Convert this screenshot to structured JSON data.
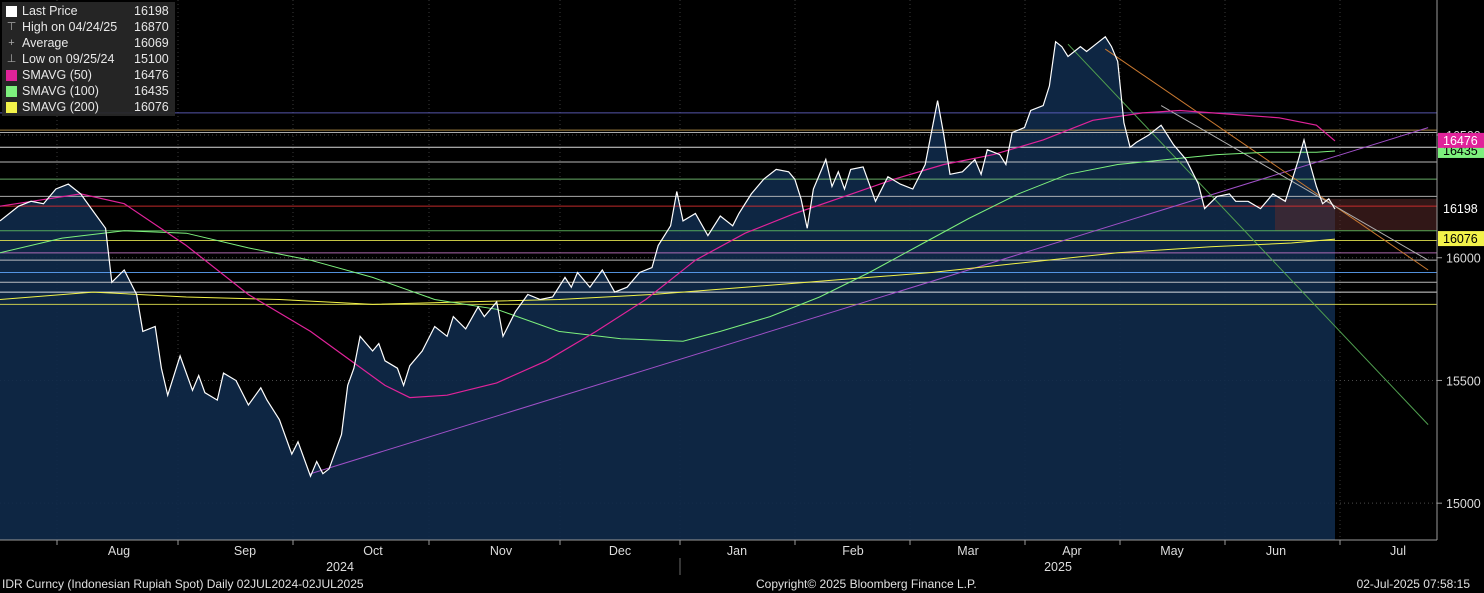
{
  "legend": [
    {
      "label": "Last Price",
      "value": "16198",
      "color": "#ffffff",
      "glyph": ""
    },
    {
      "label": "High on 04/24/25",
      "value": "16870",
      "color": "",
      "glyph": "⊤"
    },
    {
      "label": "Average",
      "value": "16069",
      "color": "",
      "glyph": "+"
    },
    {
      "label": "Low on 09/25/24",
      "value": "15100",
      "color": "",
      "glyph": "⊥"
    },
    {
      "label": "SMAVG (50)",
      "value": "16476",
      "color": "#e0239a",
      "glyph": ""
    },
    {
      "label": "SMAVG (100)",
      "value": "16435",
      "color": "#7df07d",
      "glyph": ""
    },
    {
      "label": "SMAVG (200)",
      "value": "16076",
      "color": "#f2f24a",
      "glyph": ""
    }
  ],
  "footer": {
    "left": "IDR Curncy (Indonesian Rupiah Spot)  Daily 02JUL2024-02JUL2025",
    "center": "Copyright© 2025 Bloomberg Finance L.P.",
    "right": "02-Jul-2025 07:58:15"
  },
  "chart_data": {
    "type": "line",
    "ylim": [
      14850,
      17050
    ],
    "yticks": [
      15000,
      15500,
      16000,
      16500
    ],
    "months": [
      "Aug",
      "Sep",
      "Oct",
      "Nov",
      "Dec",
      "Jan",
      "Feb",
      "Mar",
      "Apr",
      "May",
      "Jun",
      "Jul"
    ],
    "years": [
      "2024",
      "2025"
    ],
    "price_label": "16198",
    "sma50_label": "16476",
    "sma100_label": "16435",
    "sma200_label": "16076",
    "last_price": [
      [
        0,
        16150
      ],
      [
        3,
        16210
      ],
      [
        5,
        16230
      ],
      [
        7,
        16220
      ],
      [
        9,
        16280
      ],
      [
        11,
        16300
      ],
      [
        13,
        16260
      ],
      [
        15,
        16190
      ],
      [
        17,
        16120
      ],
      [
        18,
        15900
      ],
      [
        20,
        15950
      ],
      [
        22,
        15850
      ],
      [
        23,
        15700
      ],
      [
        25,
        15720
      ],
      [
        26,
        15550
      ],
      [
        27,
        15440
      ],
      [
        29,
        15600
      ],
      [
        31,
        15460
      ],
      [
        32,
        15520
      ],
      [
        33,
        15450
      ],
      [
        35,
        15420
      ],
      [
        36,
        15530
      ],
      [
        38,
        15500
      ],
      [
        40,
        15400
      ],
      [
        42,
        15470
      ],
      [
        43,
        15420
      ],
      [
        45,
        15340
      ],
      [
        47,
        15200
      ],
      [
        48,
        15250
      ],
      [
        50,
        15110
      ],
      [
        51,
        15170
      ],
      [
        52,
        15120
      ],
      [
        53,
        15140
      ],
      [
        55,
        15280
      ],
      [
        56,
        15480
      ],
      [
        57,
        15550
      ],
      [
        58,
        15680
      ],
      [
        60,
        15620
      ],
      [
        61,
        15650
      ],
      [
        62,
        15580
      ],
      [
        64,
        15550
      ],
      [
        65,
        15480
      ],
      [
        66,
        15560
      ],
      [
        68,
        15620
      ],
      [
        70,
        15720
      ],
      [
        72,
        15680
      ],
      [
        73,
        15760
      ],
      [
        75,
        15710
      ],
      [
        77,
        15800
      ],
      [
        78,
        15760
      ],
      [
        80,
        15820
      ],
      [
        81,
        15680
      ],
      [
        83,
        15780
      ],
      [
        85,
        15850
      ],
      [
        87,
        15830
      ],
      [
        89,
        15840
      ],
      [
        91,
        15920
      ],
      [
        92,
        15880
      ],
      [
        93,
        15940
      ],
      [
        95,
        15880
      ],
      [
        97,
        15950
      ],
      [
        99,
        15860
      ],
      [
        101,
        15880
      ],
      [
        103,
        15940
      ],
      [
        105,
        15960
      ],
      [
        106,
        16050
      ],
      [
        108,
        16130
      ],
      [
        109,
        16270
      ],
      [
        110,
        16150
      ],
      [
        112,
        16180
      ],
      [
        114,
        16090
      ],
      [
        116,
        16170
      ],
      [
        118,
        16130
      ],
      [
        119,
        16180
      ],
      [
        121,
        16260
      ],
      [
        123,
        16320
      ],
      [
        125,
        16360
      ],
      [
        127,
        16350
      ],
      [
        128,
        16320
      ],
      [
        129,
        16240
      ],
      [
        130,
        16120
      ],
      [
        131,
        16280
      ],
      [
        133,
        16400
      ],
      [
        134,
        16290
      ],
      [
        135,
        16350
      ],
      [
        136,
        16280
      ],
      [
        137,
        16360
      ],
      [
        139,
        16370
      ],
      [
        140,
        16300
      ],
      [
        141,
        16230
      ],
      [
        143,
        16330
      ],
      [
        145,
        16300
      ],
      [
        147,
        16280
      ],
      [
        149,
        16380
      ],
      [
        150,
        16510
      ],
      [
        151,
        16640
      ],
      [
        152,
        16500
      ],
      [
        153,
        16340
      ],
      [
        155,
        16350
      ],
      [
        157,
        16400
      ],
      [
        158,
        16340
      ],
      [
        159,
        16440
      ],
      [
        161,
        16420
      ],
      [
        162,
        16380
      ],
      [
        163,
        16510
      ],
      [
        165,
        16530
      ],
      [
        166,
        16600
      ],
      [
        168,
        16620
      ],
      [
        169,
        16700
      ],
      [
        170,
        16880
      ],
      [
        171,
        16860
      ],
      [
        172,
        16820
      ],
      [
        174,
        16860
      ],
      [
        175,
        16840
      ],
      [
        177,
        16880
      ],
      [
        178,
        16900
      ],
      [
        179,
        16860
      ],
      [
        180,
        16800
      ],
      [
        181,
        16550
      ],
      [
        182,
        16450
      ],
      [
        183,
        16470
      ],
      [
        185,
        16500
      ],
      [
        187,
        16540
      ],
      [
        189,
        16460
      ],
      [
        191,
        16400
      ],
      [
        193,
        16300
      ],
      [
        194,
        16200
      ],
      [
        196,
        16250
      ],
      [
        198,
        16260
      ],
      [
        199,
        16230
      ],
      [
        201,
        16230
      ],
      [
        203,
        16200
      ],
      [
        205,
        16260
      ],
      [
        207,
        16230
      ],
      [
        209,
        16390
      ],
      [
        210,
        16480
      ],
      [
        211,
        16380
      ],
      [
        212,
        16290
      ],
      [
        213,
        16220
      ],
      [
        214,
        16240
      ],
      [
        215,
        16198
      ]
    ],
    "sma50": [
      [
        0,
        16210
      ],
      [
        13,
        16260
      ],
      [
        20,
        16220
      ],
      [
        30,
        16050
      ],
      [
        40,
        15850
      ],
      [
        50,
        15700
      ],
      [
        56,
        15590
      ],
      [
        62,
        15480
      ],
      [
        66,
        15430
      ],
      [
        72,
        15440
      ],
      [
        80,
        15490
      ],
      [
        88,
        15580
      ],
      [
        96,
        15700
      ],
      [
        104,
        15830
      ],
      [
        112,
        15990
      ],
      [
        120,
        16100
      ],
      [
        128,
        16180
      ],
      [
        136,
        16250
      ],
      [
        144,
        16320
      ],
      [
        152,
        16380
      ],
      [
        160,
        16420
      ],
      [
        168,
        16480
      ],
      [
        176,
        16560
      ],
      [
        184,
        16590
      ],
      [
        190,
        16600
      ],
      [
        198,
        16585
      ],
      [
        206,
        16570
      ],
      [
        212,
        16540
      ],
      [
        215,
        16476
      ]
    ],
    "sma100": [
      [
        0,
        16020
      ],
      [
        10,
        16080
      ],
      [
        20,
        16110
      ],
      [
        30,
        16100
      ],
      [
        40,
        16040
      ],
      [
        50,
        15990
      ],
      [
        60,
        15920
      ],
      [
        70,
        15830
      ],
      [
        80,
        15790
      ],
      [
        90,
        15700
      ],
      [
        100,
        15670
      ],
      [
        110,
        15660
      ],
      [
        116,
        15700
      ],
      [
        124,
        15760
      ],
      [
        132,
        15840
      ],
      [
        140,
        15940
      ],
      [
        148,
        16050
      ],
      [
        156,
        16160
      ],
      [
        164,
        16260
      ],
      [
        172,
        16340
      ],
      [
        180,
        16380
      ],
      [
        188,
        16400
      ],
      [
        196,
        16420
      ],
      [
        204,
        16430
      ],
      [
        212,
        16430
      ],
      [
        215,
        16435
      ]
    ],
    "sma200": [
      [
        0,
        15830
      ],
      [
        15,
        15860
      ],
      [
        30,
        15840
      ],
      [
        45,
        15830
      ],
      [
        60,
        15810
      ],
      [
        75,
        15820
      ],
      [
        90,
        15830
      ],
      [
        105,
        15850
      ],
      [
        120,
        15880
      ],
      [
        135,
        15910
      ],
      [
        150,
        15940
      ],
      [
        165,
        15980
      ],
      [
        180,
        16020
      ],
      [
        195,
        16045
      ],
      [
        208,
        16060
      ],
      [
        215,
        16076
      ]
    ],
    "hlines": [
      {
        "v": 16590,
        "color": "#6464c8"
      },
      {
        "v": 16520,
        "color": "#c8a050"
      },
      {
        "v": 16510,
        "color": "#c8c8c8"
      },
      {
        "v": 16450,
        "color": "#ffffff"
      },
      {
        "v": 16390,
        "color": "#d8d8d8"
      },
      {
        "v": 16320,
        "color": "#78c878"
      },
      {
        "v": 16250,
        "color": "#c8c8c8"
      },
      {
        "v": 16210,
        "color": "#e03030"
      },
      {
        "v": 16110,
        "color": "#60c060"
      },
      {
        "v": 16070,
        "color": "#e8e850"
      },
      {
        "v": 16020,
        "color": "#c878c8"
      },
      {
        "v": 15990,
        "color": "#d8d8d8"
      },
      {
        "v": 15940,
        "color": "#60a8ff"
      },
      {
        "v": 15900,
        "color": "#d8d8d8"
      },
      {
        "v": 15860,
        "color": "#ffffff"
      },
      {
        "v": 15810,
        "color": "#e8e850"
      }
    ],
    "trendlines": [
      {
        "from": [
          50,
          15120
        ],
        "to": [
          230,
          16530
        ],
        "color": "#a050c8"
      },
      {
        "from": [
          172,
          16870
        ],
        "to": [
          230,
          15320
        ],
        "color": "#50a050"
      },
      {
        "from": [
          178,
          16850
        ],
        "to": [
          230,
          15950
        ],
        "color": "#c87830"
      },
      {
        "from": [
          187,
          16620
        ],
        "to": [
          230,
          15990
        ],
        "color": "#b0b0b0"
      }
    ]
  }
}
